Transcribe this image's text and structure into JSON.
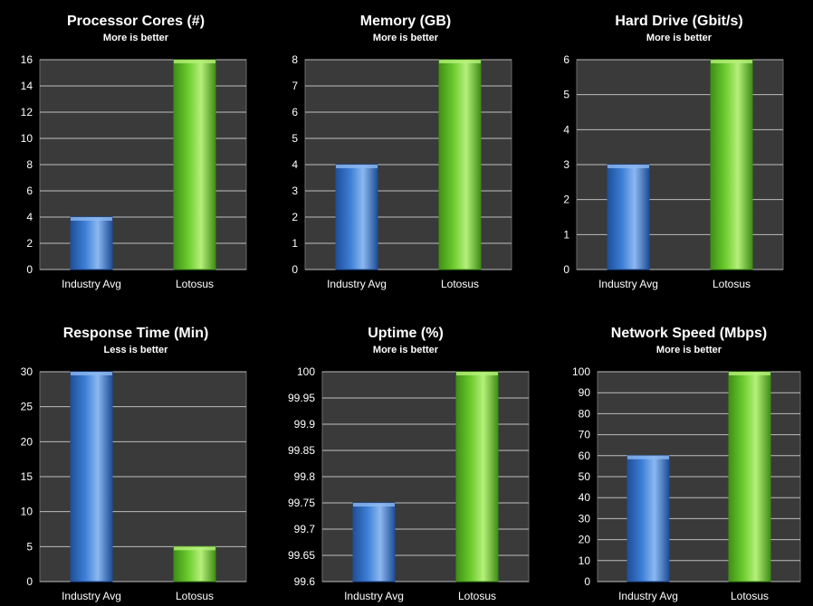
{
  "colors": {
    "industry": "#3d7fd6",
    "industry_dark": "#1f4f99",
    "industry_light": "#8cb8f0",
    "lotosus": "#6ccc2e",
    "lotosus_dark": "#3f8f16",
    "lotosus_light": "#b6f07a",
    "plot_bg": "#3a3a3a",
    "gridline": "#bdbdbd"
  },
  "chart_data": [
    {
      "type": "bar",
      "title": "Processor Cores (#)",
      "subtitle": "More is better",
      "categories": [
        "Industry Avg",
        "Lotosus"
      ],
      "values": [
        4,
        16
      ],
      "ylim": [
        0,
        16
      ],
      "yticks": [
        "0",
        "2",
        "4",
        "6",
        "8",
        "10",
        "12",
        "14",
        "16"
      ],
      "grid": true
    },
    {
      "type": "bar",
      "title": "Memory (GB)",
      "subtitle": "More is better",
      "categories": [
        "Industry Avg",
        "Lotosus"
      ],
      "values": [
        4,
        8
      ],
      "ylim": [
        0,
        8
      ],
      "yticks": [
        "0",
        "1",
        "2",
        "3",
        "4",
        "5",
        "6",
        "7",
        "8"
      ],
      "grid": true
    },
    {
      "type": "bar",
      "title": "Hard Drive (Gbit/s)",
      "subtitle": "More is better",
      "categories": [
        "Industry Avg",
        "Lotosus"
      ],
      "values": [
        3,
        6
      ],
      "ylim": [
        0,
        6
      ],
      "yticks": [
        "0",
        "1",
        "2",
        "3",
        "4",
        "5",
        "6"
      ],
      "grid": true
    },
    {
      "type": "bar",
      "title": "Response Time (Min)",
      "subtitle": "Less is better",
      "categories": [
        "Industry Avg",
        "Lotosus"
      ],
      "values": [
        30,
        5
      ],
      "ylim": [
        0,
        30
      ],
      "yticks": [
        "0",
        "5",
        "10",
        "15",
        "20",
        "25",
        "30"
      ],
      "grid": true
    },
    {
      "type": "bar",
      "title": "Uptime (%)",
      "subtitle": "More is better",
      "categories": [
        "Industry Avg",
        "Lotosus"
      ],
      "values": [
        99.75,
        100
      ],
      "ylim": [
        99.6,
        100
      ],
      "yticks": [
        "99.6",
        "99.65",
        "99.7",
        "99.75",
        "99.8",
        "99.85",
        "99.9",
        "99.95",
        "100"
      ],
      "grid": true
    },
    {
      "type": "bar",
      "title": "Network Speed (Mbps)",
      "subtitle": "More is better",
      "categories": [
        "Industry Avg",
        "Lotosus"
      ],
      "values": [
        60,
        100
      ],
      "ylim": [
        0,
        100
      ],
      "yticks": [
        "0",
        "10",
        "20",
        "30",
        "40",
        "50",
        "60",
        "70",
        "80",
        "90",
        "100"
      ],
      "grid": true
    }
  ]
}
